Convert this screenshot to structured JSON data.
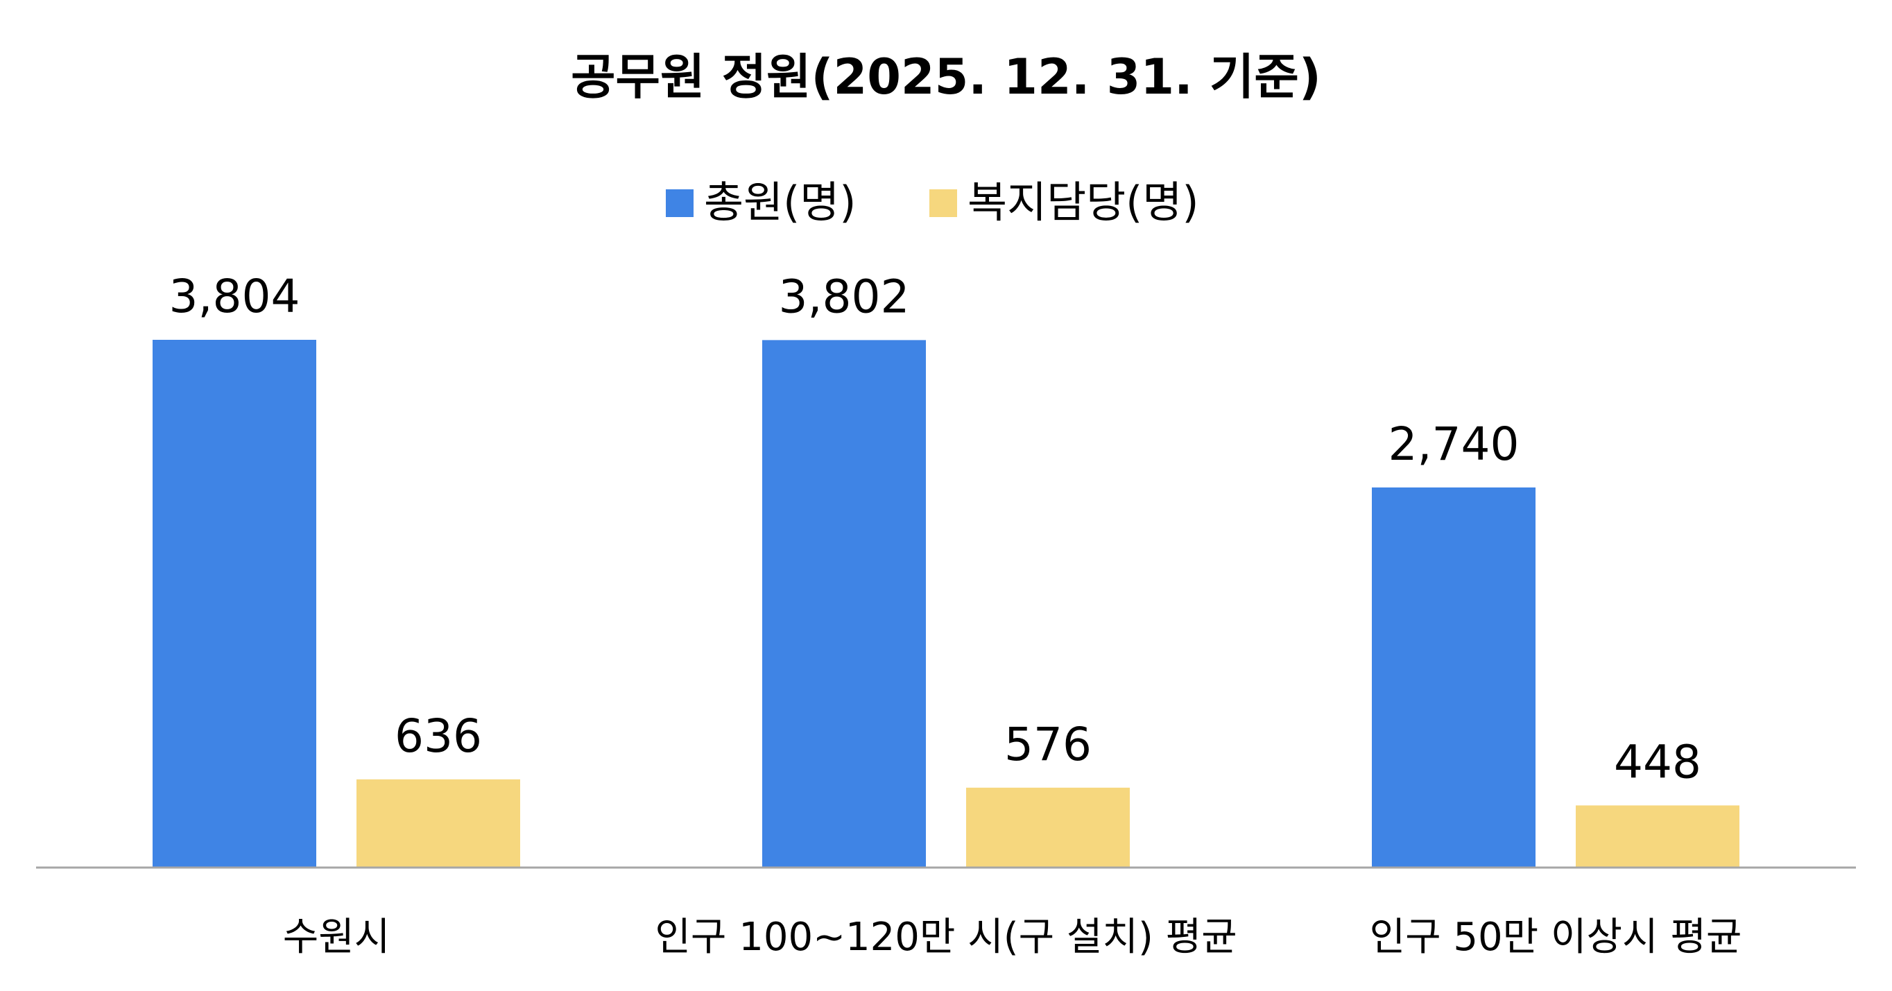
{
  "chart_data": {
    "type": "bar",
    "title": "공무원 정원(2025.  12.  31. 기준)",
    "categories": [
      "수원시",
      "인구 100~120만 시(구 설치) 평균",
      "인구 50만 이상시 평균"
    ],
    "series": [
      {
        "name": "총원(명)",
        "values": [
          3804,
          3802,
          2740
        ],
        "labels": [
          "3,804",
          "3,802",
          "2,740"
        ],
        "color": "#3f84e5"
      },
      {
        "name": "복지담당(명)",
        "values": [
          636,
          576,
          448
        ],
        "labels": [
          "636",
          "576",
          "448"
        ],
        "color": "#f6d77e"
      }
    ],
    "ylim": [
      0,
      3804
    ],
    "grid": false,
    "legend": "top-center",
    "xlabel": "",
    "ylabel": "",
    "axis_color": "#a6a6a6"
  }
}
